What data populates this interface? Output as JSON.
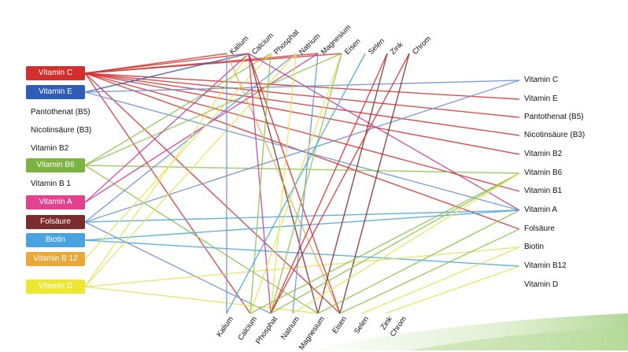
{
  "left_items": [
    {
      "label": "Vitamin C",
      "color": "#d32f2f",
      "boxed": true
    },
    {
      "label": "Vitamin E",
      "color": "#2f5db5",
      "boxed": true
    },
    {
      "label": "Pantothenat  (B5)",
      "color": "",
      "boxed": false
    },
    {
      "label": "Nicotinsäure (B3)",
      "color": "",
      "boxed": false
    },
    {
      "label": "Vitamin B2",
      "color": "",
      "boxed": false
    },
    {
      "label": "Vitamin B6",
      "color": "#7cb342",
      "boxed": true
    },
    {
      "label": "Vitamin B 1",
      "color": "",
      "boxed": false
    },
    {
      "label": "Vitamin A",
      "color": "#e0438f",
      "boxed": true
    },
    {
      "label": "Folsäure",
      "color": "#7b2c2c",
      "boxed": true
    },
    {
      "label": "Biotin",
      "color": "#4aa3df",
      "boxed": true
    },
    {
      "label": "Vitamin B 12",
      "color": "#e8a93a",
      "boxed": true
    },
    {
      "label": "Vitamin D",
      "color": "#ece832",
      "boxed": true
    }
  ],
  "right_items": [
    "Vitamin C",
    "Vitamin E",
    "Pantothenat  (B5)",
    "Nicotinsäure (B3)",
    "Vitamin B2",
    "Vitamin B6",
    "Vitamin B1",
    "Vitamin A",
    "Folsäure",
    "Biotin",
    "Vitamin B12",
    "Vitamin D"
  ],
  "top_minerals": [
    "Kalium",
    "Calcium",
    "Phosphat",
    "Natrium",
    "Magnesium",
    "Eisen",
    "Selen",
    "Zink",
    "Chrom"
  ],
  "bottom_minerals": [
    "Kalium",
    "Calcium",
    "Phosphat",
    "Natrium",
    "Magnesium",
    "Eisen",
    "Selen",
    "Zink",
    "Chrom"
  ],
  "connections": [
    {
      "from": "left:0",
      "to": "top:0",
      "color": "#d32f2f"
    },
    {
      "from": "left:0",
      "to": "top:1",
      "color": "#d32f2f"
    },
    {
      "from": "left:0",
      "to": "top:4",
      "color": "#d32f2f"
    },
    {
      "from": "left:0",
      "to": "top:5",
      "color": "#d32f2f"
    },
    {
      "from": "left:0",
      "to": "right:1",
      "color": "#d32f2f"
    },
    {
      "from": "left:0",
      "to": "right:2",
      "color": "#d32f2f"
    },
    {
      "from": "left:0",
      "to": "right:3",
      "color": "#d32f2f"
    },
    {
      "from": "left:0",
      "to": "right:4",
      "color": "#d32f2f"
    },
    {
      "from": "left:0",
      "to": "right:6",
      "color": "#d32f2f"
    },
    {
      "from": "left:0",
      "to": "right:8",
      "color": "#d32f2f"
    },
    {
      "from": "left:0",
      "to": "bottom:1",
      "color": "#d32f2f"
    },
    {
      "from": "left:0",
      "to": "bottom:5",
      "color": "#d32f2f"
    },
    {
      "from": "left:1",
      "to": "top:1",
      "color": "#2f5db5"
    },
    {
      "from": "left:1",
      "to": "right:0",
      "color": "#6a8fd0"
    },
    {
      "from": "left:1",
      "to": "right:7",
      "color": "#6a8fd0"
    },
    {
      "from": "left:5",
      "to": "top:2",
      "color": "#8bc34a"
    },
    {
      "from": "left:5",
      "to": "top:5",
      "color": "#8bc34a"
    },
    {
      "from": "left:5",
      "to": "right:5",
      "color": "#8bc34a"
    },
    {
      "from": "left:5",
      "to": "bottom:4",
      "color": "#8bc34a"
    },
    {
      "from": "left:7",
      "to": "top:1",
      "color": "#c2409b"
    },
    {
      "from": "left:7",
      "to": "top:4",
      "color": "#c2409b"
    },
    {
      "from": "left:8",
      "to": "top:3",
      "color": "#6a8fd0"
    },
    {
      "from": "left:8",
      "to": "right:0",
      "color": "#6a8fd0"
    },
    {
      "from": "left:8",
      "to": "right:7",
      "color": "#4aa3df"
    },
    {
      "from": "left:8",
      "to": "bottom:2",
      "color": "#6a8fd0"
    },
    {
      "from": "left:9",
      "to": "right:10",
      "color": "#4aa3df"
    },
    {
      "from": "left:9",
      "to": "right:7",
      "color": "#4aa3df"
    },
    {
      "from": "left:10",
      "to": "top:2",
      "color": "#e8e05a"
    },
    {
      "from": "left:11",
      "to": "top:1",
      "color": "#e8e05a"
    },
    {
      "from": "left:11",
      "to": "top:3",
      "color": "#e8e05a"
    },
    {
      "from": "left:11",
      "to": "right:9",
      "color": "#e8e05a"
    },
    {
      "from": "left:11",
      "to": "bottom:4",
      "color": "#e8e05a"
    },
    {
      "from": "top:0",
      "to": "bottom:0",
      "color": "#6a8fd0"
    },
    {
      "from": "top:0",
      "to": "bottom:5",
      "color": "#d9b35a"
    },
    {
      "from": "top:1",
      "to": "bottom:2",
      "color": "#c2409b"
    },
    {
      "from": "top:1",
      "to": "bottom:4",
      "color": "#7b2c2c"
    },
    {
      "from": "top:1",
      "to": "bottom:5",
      "color": "#d32f2f"
    },
    {
      "from": "top:1",
      "to": "right:7",
      "color": "#c2409b"
    },
    {
      "from": "top:2",
      "to": "bottom:1",
      "color": "#8bc34a"
    },
    {
      "from": "top:3",
      "to": "bottom:2",
      "color": "#e8e05a"
    },
    {
      "from": "top:4",
      "to": "bottom:3",
      "color": "#6a8fd0"
    },
    {
      "from": "top:5",
      "to": "bottom:1",
      "color": "#e8e05a"
    },
    {
      "from": "top:5",
      "to": "bottom:2",
      "color": "#8bc34a"
    },
    {
      "from": "top:6",
      "to": "bottom:0",
      "color": "#4aa3df"
    },
    {
      "from": "top:7",
      "to": "bottom:2",
      "color": "#d32f2f"
    },
    {
      "from": "top:7",
      "to": "bottom:4",
      "color": "#7b2c2c"
    },
    {
      "from": "top:8",
      "to": "bottom:2",
      "color": "#d32f2f"
    },
    {
      "from": "top:8",
      "to": "bottom:5",
      "color": "#7b2c2c"
    },
    {
      "from": "bottom:1",
      "to": "right:5",
      "color": "#8bc34a"
    },
    {
      "from": "bottom:2",
      "to": "right:5",
      "color": "#8bc34a"
    },
    {
      "from": "bottom:3",
      "to": "right:5",
      "color": "#e8e05a"
    },
    {
      "from": "bottom:4",
      "to": "right:7",
      "color": "#8bc34a"
    },
    {
      "from": "bottom:5",
      "to": "right:8",
      "color": "#8bc34a"
    },
    {
      "from": "bottom:6",
      "to": "right:9",
      "color": "#e8e05a"
    },
    {
      "from": "bottom:7",
      "to": "right:10",
      "color": "#e8e05a"
    }
  ]
}
